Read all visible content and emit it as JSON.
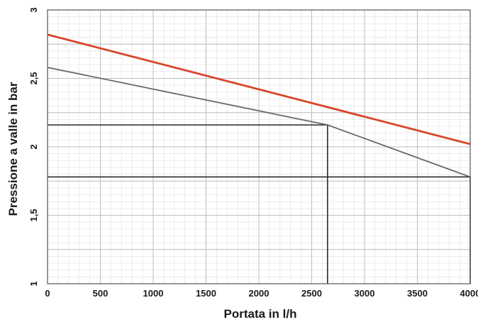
{
  "chart_data": {
    "type": "line",
    "title": "",
    "xlabel": "Portata in l/h",
    "ylabel": "Pressione a valle in bar",
    "xlim": [
      0,
      4000
    ],
    "ylim": [
      1,
      3
    ],
    "x_ticks": [
      0,
      500,
      1000,
      1500,
      2000,
      2500,
      3000,
      3500,
      4000
    ],
    "x_tick_labels": [
      "0",
      "500",
      "1000",
      "1500",
      "2000",
      "2500",
      "3000",
      "3500",
      "4000"
    ],
    "y_ticks": [
      1,
      1.5,
      2,
      2.5,
      3
    ],
    "y_tick_labels": [
      "1",
      "1,5",
      "2",
      "2,5",
      "3"
    ],
    "grid": true,
    "minor_grid": true,
    "legend": "none",
    "series": [
      {
        "color": "#d9462b",
        "x": [
          0,
          4000
        ],
        "y": [
          2.82,
          2.02
        ]
      },
      {
        "color": "#6a6a6a",
        "x": [
          0,
          2650,
          4000
        ],
        "y": [
          2.58,
          2.16,
          1.78
        ]
      }
    ],
    "reference_lines": [
      {
        "color": "#2a2a2a",
        "x": [
          0,
          2650,
          2650
        ],
        "y": [
          2.16,
          2.16,
          1
        ]
      },
      {
        "color": "#2a2a2a",
        "x": [
          0,
          4000,
          4000
        ],
        "y": [
          1.78,
          1.78,
          1
        ]
      }
    ]
  }
}
